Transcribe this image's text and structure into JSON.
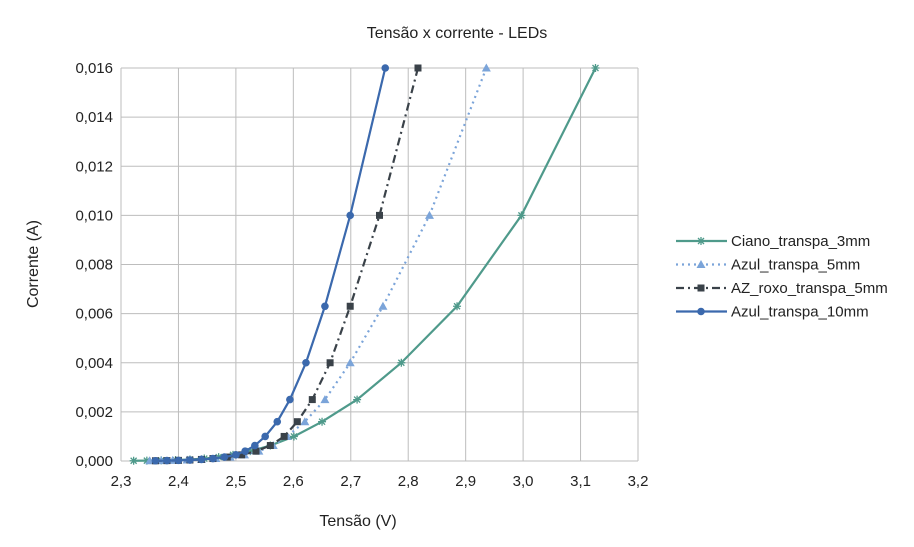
{
  "chart_data": {
    "type": "line",
    "title": "Tensão x corrente - LEDs",
    "xlabel": "Tensão (V)",
    "ylabel": "Corrente (A)",
    "xlim": [
      2.3,
      3.2
    ],
    "ylim": [
      0,
      0.016
    ],
    "xticks": [
      "2,3",
      "2,4",
      "2,5",
      "2,6",
      "2,7",
      "2,8",
      "2,9",
      "3,0",
      "3,1",
      "3,2"
    ],
    "yticks": [
      "0,000",
      "0,002",
      "0,004",
      "0,006",
      "0,008",
      "0,010",
      "0,012",
      "0,014",
      "0,016"
    ],
    "grid": true,
    "legend_position": "right",
    "current_values": [
      0.016,
      0.01,
      0.0063,
      0.004,
      0.0025,
      0.0016,
      0.001,
      0.00063,
      0.0004,
      0.00025,
      0.00016,
      0.0001,
      6.3e-05,
      4e-05,
      2.5e-05,
      1.6e-05,
      1e-05
    ],
    "series": [
      {
        "name": "Ciano_transpa_3mm",
        "color": "#4f9a8b",
        "marker": "asterisk",
        "dash": "solid",
        "x": [
          3.126,
          2.997,
          2.885,
          2.788,
          2.711,
          2.65,
          2.601,
          2.56,
          2.525,
          2.495,
          2.47,
          2.445,
          2.42,
          2.395,
          2.37,
          2.345,
          2.322
        ]
      },
      {
        "name": "Azul_transpa_5mm",
        "color": "#7ba4d9",
        "marker": "triangle",
        "dash": "dot",
        "x": [
          2.936,
          2.837,
          2.756,
          2.699,
          2.655,
          2.62,
          2.589,
          2.565,
          2.54,
          2.515,
          2.49,
          2.465,
          2.44,
          2.415,
          2.39,
          2.37,
          2.35
        ]
      },
      {
        "name": "AZ_roxo_transpa_5mm",
        "color": "#3a4249",
        "marker": "square",
        "dash": "dashdot",
        "x": [
          2.817,
          2.75,
          2.699,
          2.664,
          2.633,
          2.607,
          2.584,
          2.56,
          2.535,
          2.51,
          2.485,
          2.46,
          2.44,
          2.42,
          2.4,
          2.38,
          2.36
        ]
      },
      {
        "name": "Azul_transpa_10mm",
        "color": "#3b69ad",
        "marker": "circle",
        "dash": "solid",
        "x": [
          2.76,
          2.699,
          2.655,
          2.622,
          2.594,
          2.572,
          2.551,
          2.533,
          2.516,
          2.5,
          2.48,
          2.46,
          2.44,
          2.42,
          2.4,
          2.38,
          2.36
        ]
      }
    ]
  }
}
